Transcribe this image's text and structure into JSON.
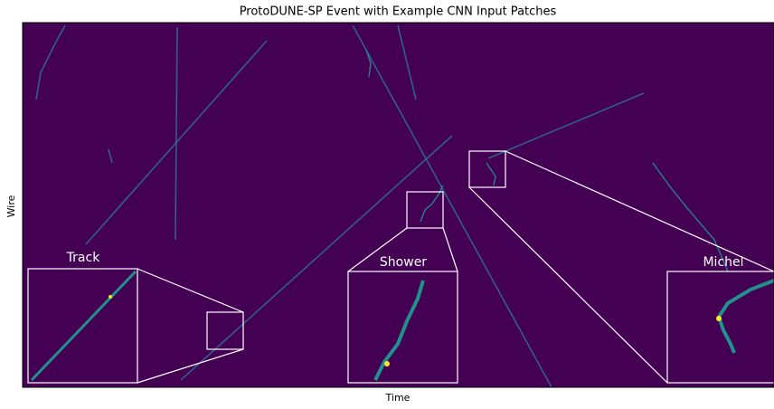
{
  "figure": {
    "title": "ProtoDUNE-SP Event with Example CNN Input Patches",
    "x_label": "Time",
    "y_label": "Wire",
    "patches": [
      {
        "label": "Track"
      },
      {
        "label": "Shower"
      },
      {
        "label": "Michel"
      }
    ]
  }
}
